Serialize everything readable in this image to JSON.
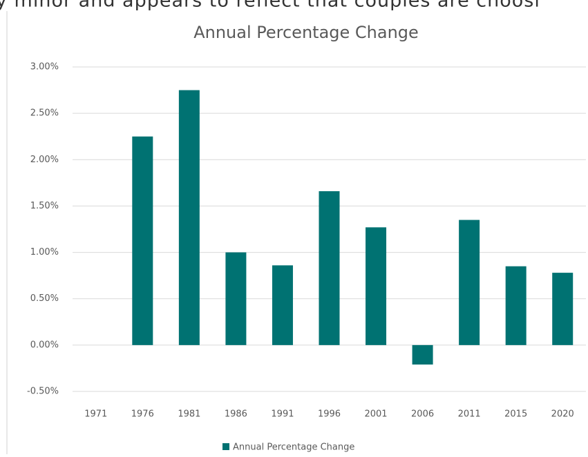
{
  "page_text": "y minor and appears to reflect that couples are choosi",
  "chart_data": {
    "type": "bar",
    "title": "Annual Percentage Change",
    "categories": [
      "1971",
      "1976",
      "1981",
      "1986",
      "1991",
      "1996",
      "2001",
      "2006",
      "2011",
      "2015",
      "2020"
    ],
    "series": [
      {
        "name": "Annual Percentage Change",
        "color": "#007272",
        "values": [
          null,
          2.25,
          2.75,
          1.0,
          0.86,
          1.66,
          1.27,
          -0.21,
          1.35,
          0.85,
          0.78
        ]
      }
    ],
    "ylim": [
      -0.5,
      3.0
    ],
    "yticks": [
      {
        "value": -0.5,
        "label": "-0.50%"
      },
      {
        "value": 0,
        "label": "0.00%"
      },
      {
        "value": 0.5,
        "label": "0.50%"
      },
      {
        "value": 1.0,
        "label": "1.00%"
      },
      {
        "value": 1.5,
        "label": "1.50%"
      },
      {
        "value": 2.0,
        "label": "2.00%"
      },
      {
        "value": 2.5,
        "label": "2.50%"
      },
      {
        "value": 3.0,
        "label": "3.00%"
      }
    ],
    "grid": true,
    "legend": "bottom"
  }
}
